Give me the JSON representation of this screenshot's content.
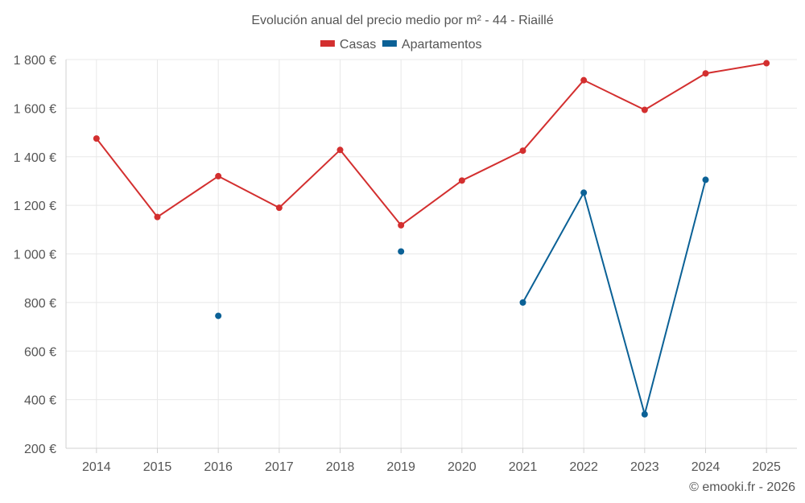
{
  "chart_data": {
    "type": "line",
    "title": "Evolución anual del precio medio por m² - 44 - Riaillé",
    "categories": [
      "2014",
      "2015",
      "2016",
      "2017",
      "2018",
      "2019",
      "2020",
      "2021",
      "2022",
      "2023",
      "2024",
      "2025"
    ],
    "ylim": [
      200,
      1800
    ],
    "yticks": [
      200,
      400,
      600,
      800,
      1000,
      1200,
      1400,
      1600,
      1800
    ],
    "ytick_labels": [
      "200 €",
      "400 €",
      "600 €",
      "800 €",
      "1 000 €",
      "1 200 €",
      "1 400 €",
      "1 600 €",
      "1 800 €"
    ],
    "series": [
      {
        "name": "Casas",
        "color": "#d32f2f",
        "values": [
          1475,
          1152,
          1320,
          1190,
          1428,
          1118,
          1302,
          1425,
          1715,
          1593,
          1743,
          1785
        ]
      },
      {
        "name": "Apartamentos",
        "color": "#0b6196",
        "values": [
          null,
          null,
          745,
          null,
          null,
          1010,
          null,
          800,
          1252,
          340,
          1305,
          null
        ]
      }
    ],
    "legend_position": "top-center",
    "grid": true
  },
  "credit": "© emooki.fr - 2026"
}
